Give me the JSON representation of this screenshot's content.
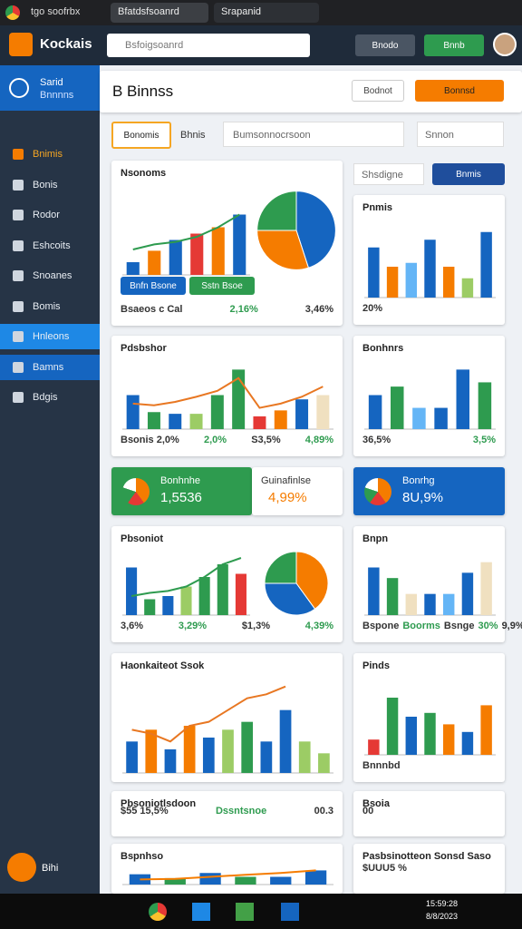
{
  "browser": {
    "tabs": [
      "tgo soofrbx",
      "Bfatdsfsoanrd",
      "Srapanid"
    ]
  },
  "app": {
    "logo": "Kockais",
    "search": "Bsfoigsoanrd",
    "buttons": [
      "Bnodo",
      "Bnnb"
    ]
  },
  "sidebar": {
    "profile": [
      "Sarid",
      "Bnnnns"
    ],
    "items": [
      "Bnimis",
      "Bonis",
      "Rodor",
      "Eshcoits",
      "Snoanes",
      "Bomis",
      "Hnleons",
      "Bamns",
      "Bdgis"
    ],
    "active": 6,
    "footer": "Bihi"
  },
  "page": {
    "title": "B Binnss",
    "actions": [
      "Bodnot",
      "Bonnsd"
    ]
  },
  "filters": {
    "tabs": [
      "Bonomis",
      "Bhnis"
    ],
    "search": "Bumsonnocrsoon",
    "select": "Snnon",
    "right_input": "Shsdigne",
    "right_button": "Bnmis"
  },
  "cards": [
    {
      "title": "Nsonoms",
      "ylim": [
        0,
        140
      ],
      "bars": [
        20,
        38,
        55,
        65,
        75,
        95
      ],
      "colors": [
        "#1565c0",
        "#f57c00",
        "#1565c0",
        "#e53935",
        "#f57c00",
        "#1565c0"
      ],
      "line": [
        40,
        48,
        52,
        60,
        75,
        95
      ],
      "line_color": "#2e9b4f",
      "pie": [
        45,
        30,
        25
      ],
      "pie_colors": [
        "#1565c0",
        "#f57c00",
        "#2e9b4f"
      ],
      "notes": [
        "Bsaeos c Cal",
        "2,16%",
        "3,46%"
      ],
      "buttons": [
        "Bnfn Bsone",
        "Sstn Bsoe"
      ]
    },
    {
      "title": "Pnmis",
      "ylim": [
        0,
        100
      ],
      "bars": [
        65,
        40,
        45,
        75,
        40,
        25,
        85
      ],
      "colors": [
        "#1565c0",
        "#f57c00",
        "#64b5f6",
        "#1565c0",
        "#f57c00",
        "#9ccc65",
        "#1565c0"
      ],
      "notes": [
        "20%"
      ]
    },
    {
      "title": "Pdsbshor",
      "ylim": [
        0,
        80
      ],
      "bars": [
        40,
        20,
        18,
        18,
        40,
        70,
        15,
        22,
        35,
        40
      ],
      "colors": [
        "#1565c0",
        "#2e9b4f",
        "#1565c0",
        "#9ccc65",
        "#2e9b4f",
        "#2e9b4f",
        "#e53935",
        "#f57c00",
        "#1565c0",
        "#f0e0c0"
      ],
      "line": [
        30,
        28,
        32,
        38,
        45,
        60,
        25,
        30,
        38,
        50
      ],
      "line_color": "#e87722",
      "notes": [
        "Bsonis 2,0%",
        "2,0%",
        "S3,5%",
        "4,89%"
      ]
    },
    {
      "title": "Bonhnrs",
      "ylim": [
        0,
        80
      ],
      "bars": [
        40,
        50,
        25,
        25,
        70,
        55
      ],
      "colors": [
        "#1565c0",
        "#2e9b4f",
        "#64b5f6",
        "#1565c0",
        "#1565c0",
        "#2e9b4f"
      ],
      "notes": [
        "36,5%",
        "3,5%"
      ]
    },
    {
      "title": "Pbsoniot",
      "ylim": [
        0,
        100
      ],
      "bars": [
        75,
        25,
        30,
        45,
        60,
        80,
        65
      ],
      "colors": [
        "#1565c0",
        "#2e9b4f",
        "#1565c0",
        "#9ccc65",
        "#2e9b4f",
        "#2e9b4f",
        "#e53935"
      ],
      "line": [
        30,
        35,
        38,
        45,
        60,
        80,
        90
      ],
      "line_color": "#2e9b4f",
      "pie": [
        40,
        35,
        25
      ],
      "pie_colors": [
        "#f57c00",
        "#1565c0",
        "#2e9b4f"
      ],
      "notes": [
        "3,6%",
        "3,29%",
        "$1,3%",
        "4,39%"
      ]
    },
    {
      "title": "Bnpn",
      "ylim": [
        0,
        60
      ],
      "bars": [
        45,
        35,
        20,
        20,
        20,
        40,
        50
      ],
      "colors": [
        "#1565c0",
        "#2e9b4f",
        "#f0e0c0",
        "#1565c0",
        "#64b5f6",
        "#1565c0",
        "#f0e0c0"
      ],
      "notes": [
        "Bspone",
        "Boorms",
        "Bsnge",
        "30%",
        "9,9%"
      ]
    },
    {
      "title": "Haonkaiteot Ssok",
      "ylim": [
        0,
        120
      ],
      "bars": [
        40,
        55,
        30,
        60,
        45,
        55,
        65,
        40,
        80,
        40,
        25
      ],
      "colors": [
        "#1565c0",
        "#f57c00",
        "#1565c0",
        "#f57c00",
        "#1565c0",
        "#9ccc65",
        "#2e9b4f",
        "#1565c0",
        "#1565c0",
        "#9ccc65",
        "#9ccc65"
      ],
      "line": [
        55,
        50,
        40,
        60,
        65,
        80,
        95,
        100,
        110,
        null,
        null
      ],
      "line_color": "#e87722"
    },
    {
      "title": "Pinds",
      "ylim": [
        0,
        100
      ],
      "bars": [
        20,
        75,
        50,
        55,
        40,
        30,
        65
      ],
      "colors": [
        "#e53935",
        "#2e9b4f",
        "#1565c0",
        "#2e9b4f",
        "#f57c00",
        "#1565c0",
        "#f57c00"
      ],
      "notes": [
        "Bnnnbd"
      ]
    },
    {
      "title": "Pbsoniotlsdoon",
      "notes": [
        "$55 15,5%",
        "Dssntsnoe",
        "00.3"
      ]
    },
    {
      "title": "Bsoia",
      "notes": [
        "00"
      ]
    },
    {
      "title": "Bspnhso",
      "ylim": [
        0,
        60
      ],
      "bars": [
        40,
        25,
        45,
        30,
        30,
        55
      ],
      "colors": [
        "#1565c0",
        "#2e9b4f",
        "#1565c0",
        "#2e9b4f",
        "#1565c0",
        "#1565c0"
      ],
      "line": [
        20,
        22,
        30,
        38,
        45,
        55
      ],
      "line_color": "#f57c00"
    },
    {
      "title": "Pasbsinotteon Sonsd Saso",
      "notes": [
        "$UUU5 %"
      ]
    }
  ],
  "banners": [
    {
      "label": "Bonhnhe",
      "value": "1,5536",
      "color": "#2e9b4f"
    },
    {
      "label": "Guinafinlse",
      "value": "4,99%",
      "color": "#ffffff"
    },
    {
      "label": "Bonrhg",
      "value": "8U,9%",
      "color": "#1565c0"
    }
  ],
  "taskbar": {
    "clock": [
      "15:59:28",
      "8/8/2023"
    ]
  }
}
